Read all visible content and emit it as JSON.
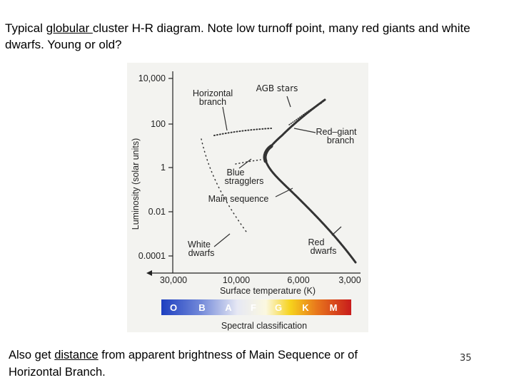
{
  "header": {
    "title_runs": [
      "Typical ",
      "globular ",
      "cluster H-R diagram.  Note low turnoff point, many red giants and white dwarfs.  Young or old?"
    ]
  },
  "figure": {
    "y_axis_label": "Luminosity (solar units)",
    "y_tick_labels": [
      "10,000",
      "100",
      "1",
      "0.01",
      "0.0001"
    ],
    "x_tick_labels": [
      "30,000",
      "10,000",
      "6,000",
      "3,000"
    ],
    "x_axis_label": "Surface temperature (K)",
    "spectral_classes": [
      "O",
      "B",
      "A",
      "F",
      "G",
      "K",
      "M"
    ],
    "spectral_label": "Spectral classification",
    "annotations": {
      "horizontal_branch": [
        "Horizontal",
        "branch"
      ],
      "agb_stars": "AGB stars",
      "red_giant_branch": [
        "Red–giant",
        "branch"
      ],
      "blue_stragglers": [
        "Blue",
        "stragglers"
      ],
      "main_sequence": "Main sequence",
      "white_dwarfs": [
        "White",
        "dwarfs"
      ],
      "red_dwarfs": [
        "Red",
        "dwarfs"
      ]
    }
  },
  "footer": {
    "text_runs": [
      "Also get ",
      "distance",
      " from apparent brightness of Main Sequence or of Horizontal Branch."
    ]
  },
  "page_number": "35"
}
